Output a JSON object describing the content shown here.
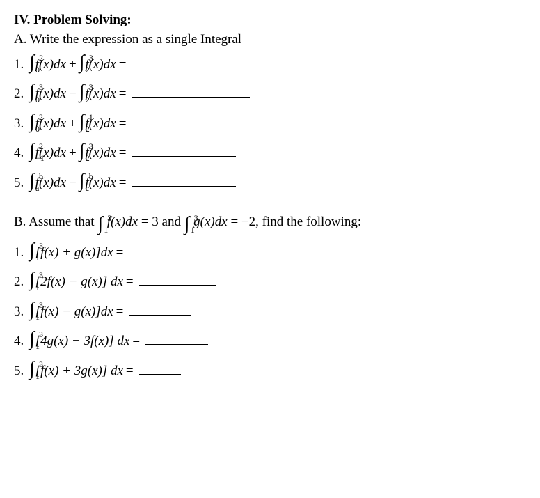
{
  "section": {
    "heading": "IV.  Problem Solving:",
    "partA": {
      "title": "A.  Write the expression as a single Integral",
      "items": [
        {
          "num": "1.",
          "t1_lo": "0",
          "t1_hi": "2",
          "t1_body": "f(x)dx",
          "op": "+",
          "t2_lo": "2",
          "t2_hi": "3",
          "t2_body": "f(x)dx",
          "eq": "=",
          "blank_class": "blank-long"
        },
        {
          "num": "2.",
          "t1_lo": "0",
          "t1_hi": "3",
          "t1_body": "f(x)dx",
          "op": "−",
          "t2_lo": "2",
          "t2_hi": "3",
          "t2_body": "f(x)dx",
          "eq": "=",
          "blank_class": "blank-med2"
        },
        {
          "num": "3.",
          "t1_lo": "0",
          "t1_hi": "2",
          "t1_body": "f(x)dx",
          "op": "+",
          "t2_lo": "2",
          "t2_hi": "1",
          "t2_body": "f(x)dx",
          "eq": "=",
          "blank_class": "blank-med"
        },
        {
          "num": "4.",
          "t1_lo": "−1",
          "t1_hi": "2",
          "t1_body": "f(x)dx",
          "op": "+",
          "t2_lo": "2",
          "t2_hi": "3",
          "t2_body": "f(x)dx",
          "eq": "=",
          "blank_class": "blank-med"
        },
        {
          "num": "5.",
          "t1_lo": "a",
          "t1_hi": "b",
          "t1_body": "f(x)dx",
          "op": "−",
          "t2_lo": "c",
          "t2_hi": "b",
          "t2_body": "f(x)dx",
          "eq": "=",
          "blank_class": "blank-med"
        }
      ]
    },
    "partB": {
      "assume_pre": "B.  Assume that ",
      "assume_i1_lo": "1",
      "assume_i1_hi": "3",
      "assume_i1_body": "f(x)dx",
      "assume_i1_val": " = 3",
      "assume_and": "   and   ",
      "assume_i2_lo": "1",
      "assume_i2_hi": "3",
      "assume_i2_body": "g(x)dx",
      "assume_i2_val": " = −2,",
      "assume_post": "  find the following:",
      "items": [
        {
          "num": "1.",
          "lo": "1",
          "hi": "3",
          "body": "[f(x) + g(x)]dx",
          "eq": "=",
          "blank_class": "blank-short"
        },
        {
          "num": "2.",
          "lo": "1",
          "hi": "3",
          "body": "[2f(x) − g(x)] dx",
          "eq": "=",
          "blank_class": "blank-short"
        },
        {
          "num": "3.",
          "lo": "1",
          "hi": "3",
          "body": "[f(x) − g(x)]dx",
          "eq": "=",
          "blank_class": "blank-xs"
        },
        {
          "num": "4.",
          "lo": "1",
          "hi": "3",
          "body": "[4g(x) − 3f(x)] dx",
          "eq": "=",
          "blank_class": "blank-xs"
        },
        {
          "num": "5.",
          "lo": "1",
          "hi": "3",
          "body": "[f(x) + 3g(x)] dx",
          "eq": "=",
          "blank_class": "blank-xxs"
        }
      ]
    }
  }
}
